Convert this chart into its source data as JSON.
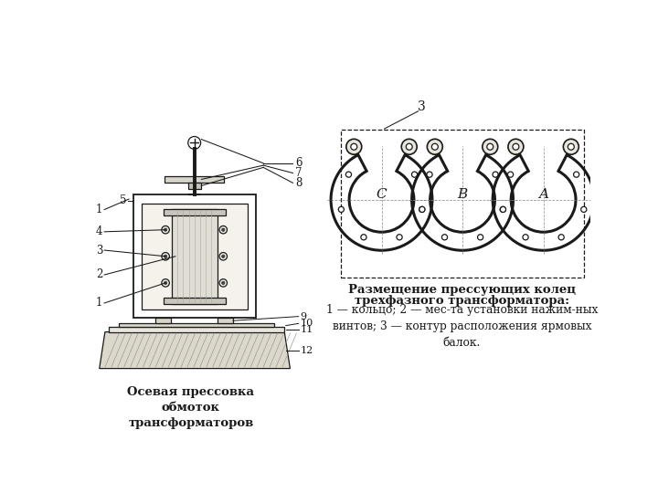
{
  "bg_color": "#f0ede8",
  "black": "#1a1a1a",
  "gray": "#777777",
  "light_gray": "#c8c8c0",
  "mid_gray": "#a8a8a0",
  "left_title": "Осевая прессовка\nобмоток\nтрансформаторов",
  "right_title1": "Размещение прессующих колец",
  "right_title2": "трехфазного трансформатора:",
  "right_desc1": "1 — кольцо; 2 — мес-та установки нажим-ных",
  "right_desc2": "винтов; 3 — контур расположения ярмовых",
  "right_desc3": "балок.",
  "rings": [
    "C",
    "B",
    "A"
  ]
}
